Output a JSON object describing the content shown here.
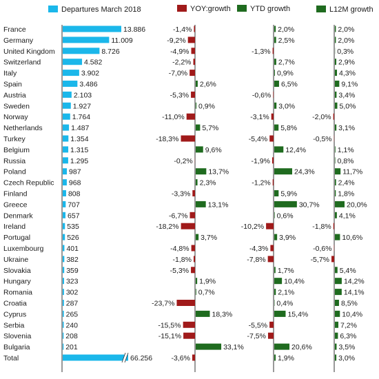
{
  "colors": {
    "departures": "#1bb7ea",
    "yoy": "#a01a1a",
    "ytd": "#1f6b1f",
    "l12m": "#1f6b1f",
    "axis": "#333333"
  },
  "chart_data": {
    "type": "bar",
    "legend": [
      "Departures March 2018",
      "YOY:growth",
      "YTD growth",
      "L12M growth"
    ],
    "legend_position": "top",
    "categories": [
      "France",
      "Germany",
      "United Kingdom",
      "Switzerland",
      "Italy",
      "Spain",
      "Austria",
      "Sweden",
      "Norway",
      "Netherlands",
      "Turkey",
      "Belgium",
      "Russia",
      "Poland",
      "Czech Republic",
      "Finland",
      "Greece",
      "Denmark",
      "Ireland",
      "Portugal",
      "Luxembourg",
      "Ukraine",
      "Slovakia",
      "Hungary",
      "Romania",
      "Croatia",
      "Cyprus",
      "Serbia",
      "Slovenia",
      "Bulgaria",
      "Total"
    ],
    "series": [
      {
        "name": "Departures March 2018",
        "values": [
          13886,
          11009,
          8726,
          4582,
          3902,
          3486,
          2103,
          1927,
          1764,
          1487,
          1354,
          1315,
          1295,
          987,
          968,
          808,
          707,
          657,
          535,
          526,
          401,
          382,
          359,
          323,
          302,
          287,
          265,
          240,
          208,
          201,
          66256
        ],
        "labels": [
          "13.886",
          "11.009",
          "8.726",
          "4.582",
          "3.902",
          "3.486",
          "2.103",
          "1.927",
          "1.764",
          "1.487",
          "1.354",
          "1.315",
          "1.295",
          "987",
          "968",
          "808",
          "707",
          "657",
          "535",
          "526",
          "401",
          "382",
          "359",
          "323",
          "302",
          "287",
          "265",
          "240",
          "208",
          "201",
          "66.256"
        ]
      },
      {
        "name": "YOY:growth",
        "values": [
          -1.4,
          -9.2,
          -4.9,
          -2.2,
          -7.0,
          2.6,
          -5.3,
          0.9,
          -11.0,
          5.7,
          -18.3,
          9.6,
          -0.2,
          13.7,
          2.3,
          -3.3,
          13.1,
          -6.7,
          -18.2,
          3.7,
          -4.8,
          -1.8,
          -5.3,
          1.9,
          0.7,
          -23.7,
          18.3,
          -15.5,
          -15.1,
          33.1,
          -3.6
        ],
        "labels": [
          "-1,4%",
          "-9,2%",
          "-4,9%",
          "-2,2%",
          "-7,0%",
          "2,6%",
          "-5,3%",
          "0,9%",
          "-11,0%",
          "5,7%",
          "-18,3%",
          "9,6%",
          "-0,2%",
          "13,7%",
          "2,3%",
          "-3,3%",
          "13,1%",
          "-6,7%",
          "-18,2%",
          "3,7%",
          "-4,8%",
          "-1,8%",
          "-5,3%",
          "1,9%",
          "0,7%",
          "-23,7%",
          "18,3%",
          "-15,5%",
          "-15,1%",
          "33,1%",
          "-3,6%"
        ]
      },
      {
        "name": "YTD growth",
        "values": [
          2.0,
          2.5,
          -1.3,
          2.7,
          0.9,
          6.5,
          -0.6,
          3.0,
          -3.1,
          5.8,
          -5.4,
          12.4,
          -1.9,
          24.3,
          -1.2,
          5.9,
          30.7,
          0.6,
          -10.2,
          3.9,
          -4.3,
          -7.8,
          1.7,
          10.4,
          2.1,
          0.4,
          15.4,
          -5.5,
          -7.5,
          20.6,
          1.9
        ],
        "labels": [
          "2,0%",
          "2,5%",
          "-1,3%",
          "2,7%",
          "0,9%",
          "6,5%",
          "-0,6%",
          "3,0%",
          "-3,1%",
          "5,8%",
          "-5,4%",
          "12,4%",
          "-1,9%",
          "24,3%",
          "-1,2%",
          "5,9%",
          "30,7%",
          "0,6%",
          "-10,2%",
          "3,9%",
          "-4,3%",
          "-7,8%",
          "1,7%",
          "10,4%",
          "2,1%",
          "0,4%",
          "15,4%",
          "-5,5%",
          "-7,5%",
          "20,6%",
          "1,9%"
        ]
      },
      {
        "name": "L12M growth",
        "values": [
          2.0,
          2.0,
          0.3,
          2.9,
          4.3,
          9.1,
          3.4,
          5.0,
          -2.0,
          3.1,
          -0.5,
          1.1,
          0.8,
          11.7,
          2.4,
          1.8,
          20.0,
          4.1,
          -1.8,
          10.6,
          -0.6,
          -5.7,
          5.4,
          14.2,
          14.1,
          8.5,
          10.4,
          7.2,
          6.3,
          3.5,
          3.0
        ],
        "labels": [
          "2,0%",
          "2,0%",
          "0,3%",
          "2,9%",
          "4,3%",
          "9,1%",
          "3,4%",
          "5,0%",
          "-2,0%",
          "3,1%",
          "-0,5%",
          "1,1%",
          "0,8%",
          "11,7%",
          "2,4%",
          "1,8%",
          "20,0%",
          "4,1%",
          "-1,8%",
          "10,6%",
          "-0,6%",
          "-5,7%",
          "5,4%",
          "14,2%",
          "14,1%",
          "8,5%",
          "10,4%",
          "7,2%",
          "6,3%",
          "3,5%",
          "3,0%"
        ]
      }
    ],
    "axis_break_on_total": true
  }
}
